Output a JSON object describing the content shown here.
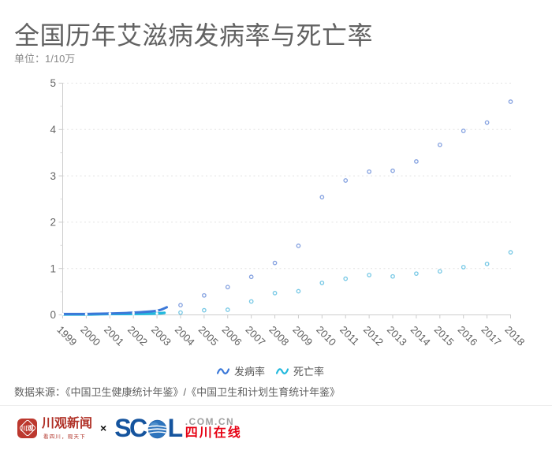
{
  "header": {
    "title": "全国历年艾滋病发病率与死亡率",
    "unit_label": "单位：1/10万"
  },
  "chart_data": {
    "type": "scatter",
    "title": "全国历年艾滋病发病率与死亡率",
    "unit": "1/10万",
    "categories": [
      "1999",
      "2000",
      "2001",
      "2002",
      "2003",
      "2004",
      "2005",
      "2006",
      "2007",
      "2008",
      "2009",
      "2010",
      "2011",
      "2012",
      "2013",
      "2014",
      "2015",
      "2016",
      "2017",
      "2018"
    ],
    "series": [
      {
        "name": "发病率",
        "line_color": "#3b78d8",
        "marker_color": "#84a1e0",
        "values": [
          0.02,
          0.02,
          0.03,
          0.05,
          0.09,
          0.21,
          0.42,
          0.6,
          0.82,
          1.12,
          1.49,
          2.54,
          2.9,
          3.09,
          3.11,
          3.31,
          3.67,
          3.97,
          4.15,
          4.6
        ]
      },
      {
        "name": "死亡率",
        "line_color": "#22b9dd",
        "marker_color": "#76c8e5",
        "values": [
          0.01,
          0.01,
          0.02,
          0.02,
          0.03,
          0.05,
          0.1,
          0.11,
          0.29,
          0.47,
          0.51,
          0.69,
          0.78,
          0.86,
          0.83,
          0.89,
          0.94,
          1.03,
          1.1,
          1.35
        ]
      }
    ],
    "ylim": [
      0,
      5
    ],
    "yticks": [
      0,
      1,
      2,
      3,
      4,
      5
    ],
    "grid": "dotted-horizontal",
    "legend_position": "bottom",
    "line_drawn_through_years": [
      "1999",
      "2003"
    ]
  },
  "source": {
    "label": "数据来源：《中国卫生健康统计年鉴》/《中国卫生和计划生育统计年鉴》"
  },
  "footer": {
    "cgnews_icon_text": "川观",
    "cgnews_name": "川观新闻",
    "cgnews_tagline": "看四川，观天下",
    "separator": "×",
    "scol_sc": "SC",
    "scol_l": "L",
    "scol_domain": ".COM.CN",
    "scol_site": "四川在线",
    "colors": {
      "cgnews_red": "#b03127",
      "scol_blue": "#15549e",
      "scol_red": "#e60113",
      "scol_gray": "#a0a0a0"
    }
  }
}
